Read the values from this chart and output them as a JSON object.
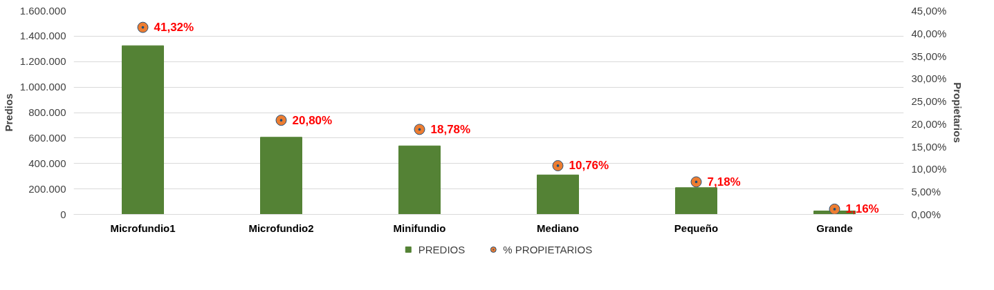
{
  "chart_data": {
    "type": "bar",
    "categories": [
      "Microfundio1",
      "Microfundio2",
      "Minifundio",
      "Mediano",
      "Pequeño",
      "Grande"
    ],
    "ylabel": "Predios",
    "y2label": "Propietarios",
    "series": [
      {
        "name": "PREDIOS",
        "type": "bar",
        "color": "#548235",
        "values": [
          1325000,
          606000,
          538000,
          310000,
          210000,
          27000
        ]
      },
      {
        "name": "% PROPIETARIOS",
        "type": "scatter",
        "axis": "y2",
        "color": "#ed7d31",
        "values": [
          41.32,
          20.8,
          18.78,
          10.76,
          7.18,
          1.16
        ],
        "value_labels": [
          "41,32%",
          "20,80%",
          "18,78%",
          "10,76%",
          "7,18%",
          "1,16%"
        ]
      }
    ],
    "ylim": [
      0,
      1600000
    ],
    "yticks": [
      0,
      {
        "value": 200000,
        "label": "200.000"
      },
      {
        "value": 400000,
        "label": "400.000"
      },
      {
        "value": 600000,
        "label": "600.000"
      },
      {
        "value": 800000,
        "label": "800.000"
      },
      {
        "value": 1000000,
        "label": "1.000.000"
      },
      {
        "value": 1200000,
        "label": "1.200.000"
      },
      {
        "value": 1400000,
        "label": "1.400.000"
      },
      {
        "value": 1600000,
        "label": "1.600.000"
      }
    ],
    "y2lim": [
      0,
      45
    ],
    "y2ticks": [
      {
        "value": 0,
        "label": "0,00%"
      },
      {
        "value": 5,
        "label": "5,00%"
      },
      {
        "value": 10,
        "label": "10,00%"
      },
      {
        "value": 15,
        "label": "15,00%"
      },
      {
        "value": 20,
        "label": "20,00%"
      },
      {
        "value": 25,
        "label": "25,00%"
      },
      {
        "value": 30,
        "label": "30,00%"
      },
      {
        "value": 35,
        "label": "35,00%"
      },
      {
        "value": 40,
        "label": "40,00%"
      },
      {
        "value": 45,
        "label": "45,00%"
      }
    ],
    "grid": "y",
    "legend": "bottom",
    "marker": "circle"
  }
}
